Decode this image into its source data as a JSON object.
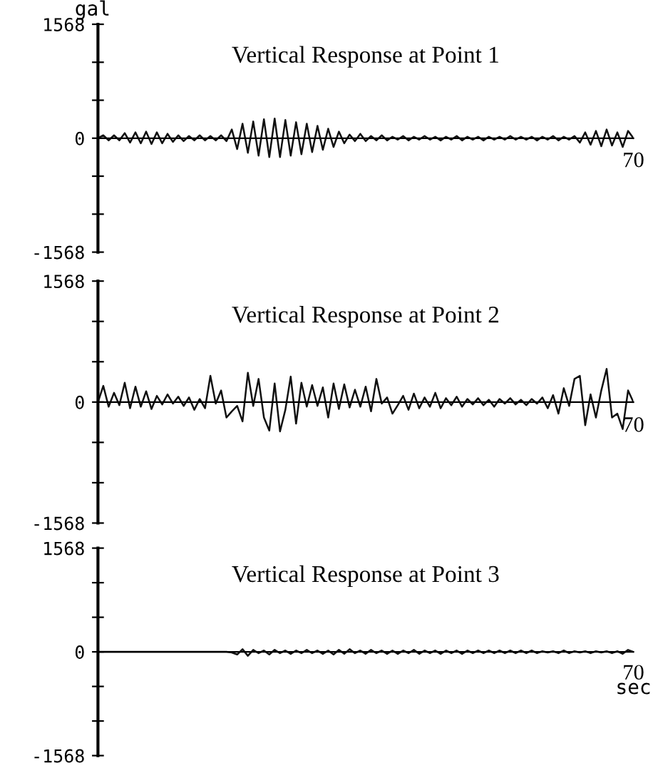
{
  "chart_data": [
    {
      "type": "line",
      "title": "Vertical Response at Point 1",
      "ylabel": "gal",
      "annotations": [
        "70"
      ],
      "color": "#111111",
      "ylim": [
        -1568,
        1568
      ],
      "yticks": [
        {
          "value": -1568,
          "label": "-1568"
        },
        {
          "value": -1045.3,
          "label": null
        },
        {
          "value": -522.7,
          "label": null
        },
        {
          "value": 0,
          "label": "0"
        },
        {
          "value": 522.7,
          "label": null
        },
        {
          "value": 1045.3,
          "label": null
        },
        {
          "value": 1568,
          "label": "1568"
        }
      ],
      "categories": [
        null,
        null,
        null,
        null,
        null,
        null,
        null,
        null,
        null,
        null,
        null,
        null,
        null,
        null,
        null,
        null,
        null,
        null,
        null,
        null,
        null,
        null,
        null,
        null,
        null,
        null,
        null,
        null,
        null,
        null,
        null,
        null,
        null,
        null,
        null,
        null,
        null,
        null,
        null,
        null,
        null,
        null,
        null,
        null,
        null,
        null,
        null,
        null,
        null,
        null,
        null,
        null,
        null,
        null,
        null,
        null,
        null,
        null,
        null,
        null,
        null,
        null,
        null,
        null,
        null,
        null,
        null,
        null,
        null,
        null,
        null,
        null,
        null,
        null,
        null,
        null,
        null,
        null,
        null,
        null,
        null,
        null,
        null,
        null,
        null,
        null,
        null,
        null,
        null,
        null,
        null,
        null,
        null,
        null,
        null,
        null,
        null,
        null,
        null,
        null,
        null
      ],
      "values": [
        0,
        40,
        -30,
        40,
        -30,
        70,
        -60,
        80,
        -70,
        90,
        -80,
        80,
        -70,
        60,
        -50,
        40,
        -40,
        30,
        -30,
        40,
        -30,
        30,
        -30,
        40,
        -40,
        120,
        -150,
        200,
        -200,
        230,
        -240,
        260,
        -260,
        270,
        -260,
        250,
        -240,
        220,
        -220,
        200,
        -190,
        170,
        -160,
        130,
        -120,
        90,
        -70,
        50,
        -40,
        60,
        -40,
        30,
        -30,
        40,
        -30,
        20,
        -20,
        30,
        -30,
        20,
        -20,
        30,
        -20,
        20,
        -30,
        20,
        -20,
        30,
        -30,
        20,
        -20,
        20,
        -30,
        20,
        -20,
        20,
        -20,
        30,
        -20,
        20,
        -20,
        20,
        -30,
        20,
        -20,
        30,
        -30,
        20,
        -20,
        30,
        -60,
        80,
        -90,
        100,
        -110,
        120,
        -100,
        80,
        -120,
        100,
        0
      ]
    },
    {
      "type": "line",
      "title": "Vertical Response at Point 2",
      "annotations": [
        "70"
      ],
      "color": "#111111",
      "ylim": [
        -1568,
        1568
      ],
      "yticks": [
        {
          "value": -1568,
          "label": "-1568"
        },
        {
          "value": -1045.3,
          "label": null
        },
        {
          "value": -522.7,
          "label": null
        },
        {
          "value": 0,
          "label": "0"
        },
        {
          "value": 522.7,
          "label": null
        },
        {
          "value": 1045.3,
          "label": null
        },
        {
          "value": 1568,
          "label": "1568"
        }
      ],
      "categories": [
        null,
        null,
        null,
        null,
        null,
        null,
        null,
        null,
        null,
        null,
        null,
        null,
        null,
        null,
        null,
        null,
        null,
        null,
        null,
        null,
        null,
        null,
        null,
        null,
        null,
        null,
        null,
        null,
        null,
        null,
        null,
        null,
        null,
        null,
        null,
        null,
        null,
        null,
        null,
        null,
        null,
        null,
        null,
        null,
        null,
        null,
        null,
        null,
        null,
        null,
        null,
        null,
        null,
        null,
        null,
        null,
        null,
        null,
        null,
        null,
        null,
        null,
        null,
        null,
        null,
        null,
        null,
        null,
        null,
        null,
        null,
        null,
        null,
        null,
        null,
        null,
        null,
        null,
        null,
        null,
        null,
        null,
        null,
        null,
        null,
        null,
        null,
        null,
        null,
        null,
        null,
        null,
        null,
        null,
        null,
        null,
        null,
        null,
        null,
        null,
        null
      ],
      "values": [
        0,
        210,
        -60,
        120,
        -40,
        250,
        -80,
        200,
        -60,
        140,
        -90,
        80,
        -30,
        100,
        -20,
        70,
        -50,
        60,
        -100,
        40,
        -80,
        340,
        -20,
        150,
        -200,
        -120,
        -50,
        -250,
        380,
        -50,
        300,
        -200,
        -370,
        240,
        -380,
        -100,
        330,
        -280,
        250,
        -60,
        220,
        -50,
        190,
        -200,
        240,
        -90,
        230,
        -70,
        160,
        -60,
        200,
        -120,
        300,
        -20,
        60,
        -150,
        -40,
        80,
        -100,
        110,
        -80,
        60,
        -60,
        120,
        -80,
        50,
        -40,
        70,
        -60,
        40,
        -30,
        50,
        -40,
        30,
        -60,
        40,
        -20,
        50,
        -30,
        30,
        -40,
        40,
        -20,
        60,
        -80,
        90,
        -150,
        180,
        -50,
        300,
        340,
        -300,
        100,
        -200,
        150,
        430,
        -200,
        -150,
        -350,
        150,
        0
      ]
    },
    {
      "type": "line",
      "title": "Vertical Response at Point 3",
      "xlabel": "sec",
      "annotations": [
        "70"
      ],
      "color": "#111111",
      "ylim": [
        -1568,
        1568
      ],
      "yticks": [
        {
          "value": -1568,
          "label": "-1568"
        },
        {
          "value": -1045.3,
          "label": null
        },
        {
          "value": -522.7,
          "label": null
        },
        {
          "value": 0,
          "label": "0"
        },
        {
          "value": 522.7,
          "label": null
        },
        {
          "value": 1045.3,
          "label": null
        },
        {
          "value": 1568,
          "label": "1568"
        }
      ],
      "categories": [
        null,
        null,
        null,
        null,
        null,
        null,
        null,
        null,
        null,
        null,
        null,
        null,
        null,
        null,
        null,
        null,
        null,
        null,
        null,
        null,
        null,
        null,
        null,
        null,
        null,
        null,
        null,
        null,
        null,
        null,
        null,
        null,
        null,
        null,
        null,
        null,
        null,
        null,
        null,
        null,
        null,
        null,
        null,
        null,
        null,
        null,
        null,
        null,
        null,
        null,
        null,
        null,
        null,
        null,
        null,
        null,
        null,
        null,
        null,
        null,
        null,
        null,
        null,
        null,
        null,
        null,
        null,
        null,
        null,
        null,
        null,
        null,
        null,
        null,
        null,
        null,
        null,
        null,
        null,
        null,
        null,
        null,
        null,
        null,
        null,
        null,
        null,
        null,
        null,
        null,
        null,
        null,
        null,
        null,
        null,
        null,
        null,
        null,
        null,
        null,
        null
      ],
      "values": [
        0,
        0,
        0,
        0,
        0,
        0,
        0,
        0,
        0,
        0,
        0,
        0,
        0,
        0,
        0,
        0,
        0,
        0,
        0,
        0,
        0,
        0,
        0,
        0,
        0,
        -10,
        -40,
        40,
        -60,
        30,
        -20,
        20,
        -40,
        30,
        -20,
        20,
        -30,
        20,
        -20,
        30,
        -20,
        20,
        -30,
        20,
        -40,
        30,
        -30,
        40,
        -20,
        20,
        -30,
        30,
        -20,
        20,
        -30,
        20,
        -30,
        20,
        -20,
        30,
        -30,
        20,
        -20,
        20,
        -30,
        20,
        -20,
        20,
        -30,
        20,
        -20,
        20,
        -20,
        20,
        -20,
        20,
        -20,
        20,
        -20,
        20,
        -20,
        20,
        -20,
        10,
        -10,
        10,
        -20,
        20,
        -20,
        10,
        -10,
        10,
        -20,
        10,
        -10,
        10,
        -20,
        10,
        -30,
        30,
        0
      ]
    }
  ]
}
